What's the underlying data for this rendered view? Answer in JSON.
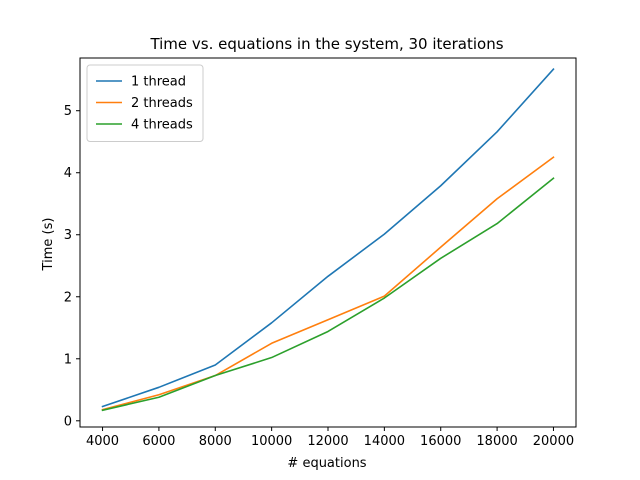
{
  "chart_data": {
    "type": "line",
    "title": "Time vs. equations in the system, 30 iterations",
    "xlabel": "# equations",
    "ylabel": "Time (s)",
    "x": [
      4000,
      6000,
      8000,
      10000,
      12000,
      14000,
      16000,
      18000,
      20000
    ],
    "xticks": [
      4000,
      6000,
      8000,
      10000,
      12000,
      14000,
      16000,
      18000,
      20000
    ],
    "xtick_labels": [
      "4000",
      "6000",
      "8000",
      "10000",
      "12000",
      "14000",
      "16000",
      "18000",
      "20000"
    ],
    "yticks": [
      0,
      1,
      2,
      3,
      4,
      5
    ],
    "ytick_labels": [
      "0",
      "1",
      "2",
      "3",
      "4",
      "5"
    ],
    "xlim": [
      3200,
      20800
    ],
    "ylim": [
      -0.1,
      5.85
    ],
    "grid": false,
    "legend_position": "top-left",
    "series": [
      {
        "name": "1 thread",
        "color": "#1f77b4",
        "values": [
          0.23,
          0.54,
          0.9,
          1.58,
          2.33,
          3.01,
          3.79,
          4.66,
          5.67
        ]
      },
      {
        "name": "2 threads",
        "color": "#ff7f0e",
        "values": [
          0.18,
          0.42,
          0.73,
          1.25,
          1.63,
          2.01,
          2.8,
          3.58,
          4.25
        ]
      },
      {
        "name": "4 threads",
        "color": "#2ca02c",
        "values": [
          0.17,
          0.38,
          0.73,
          1.02,
          1.44,
          1.98,
          2.62,
          3.18,
          3.91
        ]
      }
    ]
  }
}
